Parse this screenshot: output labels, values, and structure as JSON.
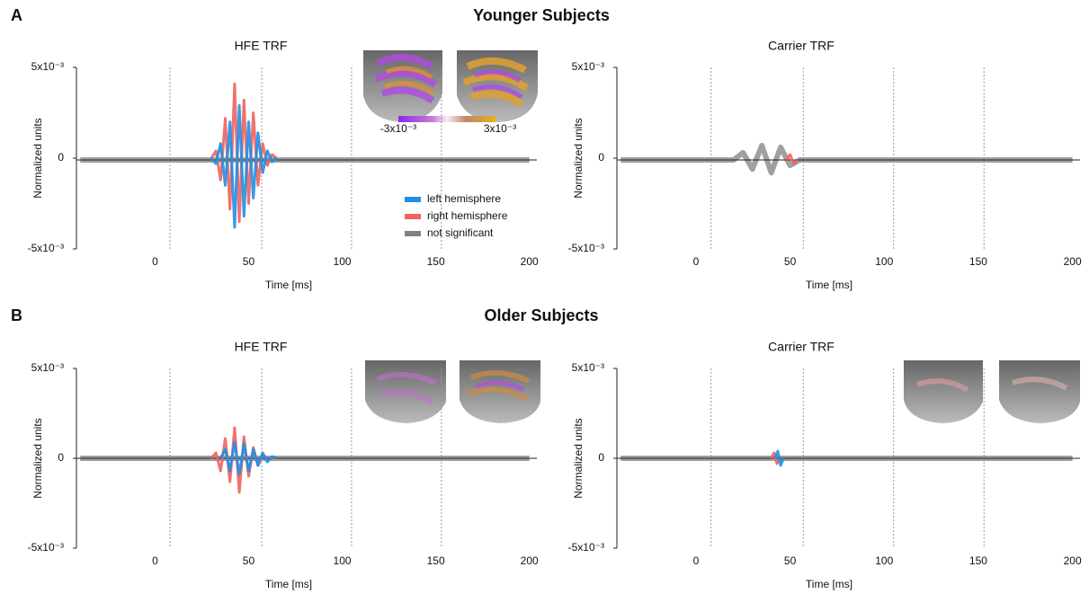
{
  "sections": [
    {
      "letter": "A",
      "title": "Younger Subjects"
    },
    {
      "letter": "B",
      "title": "Older Subjects"
    }
  ],
  "chart_data": [
    {
      "type": "line",
      "title": "HFE TRF",
      "y_label": "Normalized units",
      "x_label": "Time [ms]",
      "xlim": [
        -42,
        204
      ],
      "xticks": [
        0,
        50,
        100,
        150,
        200
      ],
      "ylim": [
        -0.005,
        0.005
      ],
      "yticks": [
        {
          "value": -0.005,
          "label": "-5x10⁻³"
        },
        0,
        {
          "value": 0.005,
          "label": "5x10⁻³"
        }
      ],
      "vlines": [
        8,
        57,
        105,
        153
      ],
      "legend": true,
      "colorbar_labels": [
        "-3x10⁻³",
        "3x10⁻³"
      ],
      "series": [
        {
          "name": "not significant",
          "color": "#808080",
          "x": [
            -40,
            200
          ],
          "values": [
            -0.0001,
            -0.0001
          ]
        },
        {
          "name": "right hemisphere",
          "color": "#f0625f",
          "x": [
            30,
            32.5,
            35,
            37.5,
            40,
            42.5,
            45,
            47.5,
            50,
            52.5,
            55,
            57.5,
            60,
            62.5,
            65
          ],
          "values": [
            0,
            0.0004,
            -0.0012,
            0.0022,
            -0.0028,
            0.0041,
            -0.0035,
            0.0032,
            -0.0025,
            0.0025,
            -0.0015,
            0.0008,
            -0.0004,
            0.0002,
            0
          ]
        },
        {
          "name": "left hemisphere",
          "color": "#1f8fe6",
          "x": [
            30,
            32.5,
            35,
            37.5,
            40,
            42.5,
            45,
            47.5,
            50,
            52.5,
            55,
            57.5,
            60,
            62.5,
            65
          ],
          "values": [
            0,
            -0.0003,
            0.0008,
            -0.0015,
            0.002,
            -0.0038,
            0.0029,
            -0.0032,
            0.002,
            -0.0022,
            0.0014,
            -0.0008,
            0.0004,
            -0.0002,
            0
          ]
        }
      ]
    },
    {
      "type": "line",
      "title": "Carrier TRF",
      "y_label": "Normalized units",
      "x_label": "Time [ms]",
      "xlim": [
        -42,
        204
      ],
      "xticks": [
        0,
        50,
        100,
        150,
        200
      ],
      "ylim": [
        -0.005,
        0.005
      ],
      "yticks": [
        {
          "value": -0.005,
          "label": "-5x10⁻³"
        },
        0,
        {
          "value": 0.005,
          "label": "5x10⁻³"
        }
      ],
      "vlines": [
        8,
        57,
        105,
        153
      ],
      "legend": false,
      "series": [
        {
          "name": "not significant",
          "color": "#808080",
          "x": [
            -40,
            20,
            25,
            30,
            35,
            40,
            45,
            50,
            55,
            200
          ],
          "values": [
            -0.0001,
            -0.0001,
            0.0003,
            -0.0006,
            0.0007,
            -0.0008,
            0.0006,
            -0.0004,
            -0.0001,
            -0.0001
          ]
        },
        {
          "name": "right hemisphere",
          "color": "#f0625f",
          "x": [
            48,
            50,
            52,
            54
          ],
          "values": [
            -0.0001,
            0.0002,
            -0.0003,
            -0.0001
          ]
        }
      ]
    },
    {
      "type": "line",
      "title": "HFE TRF",
      "y_label": "Normalized units",
      "x_label": "Time [ms]",
      "xlim": [
        -42,
        204
      ],
      "xticks": [
        0,
        50,
        100,
        150,
        200
      ],
      "ylim": [
        -0.005,
        0.005
      ],
      "yticks": [
        {
          "value": -0.005,
          "label": "-5x10⁻³"
        },
        0,
        {
          "value": 0.005,
          "label": "5x10⁻³"
        }
      ],
      "vlines": [
        8,
        57,
        105,
        153
      ],
      "legend": false,
      "series": [
        {
          "name": "not significant",
          "color": "#808080",
          "x": [
            -40,
            200
          ],
          "values": [
            0,
            0
          ]
        },
        {
          "name": "right hemisphere",
          "color": "#f0625f",
          "x": [
            30,
            32.5,
            35,
            37.5,
            40,
            42.5,
            45,
            47.5,
            50,
            52.5,
            55,
            57.5,
            60
          ],
          "values": [
            0,
            0.0003,
            -0.0007,
            0.0011,
            -0.0013,
            0.0017,
            -0.0019,
            0.0012,
            -0.001,
            0.0006,
            -0.0004,
            0.0002,
            0
          ]
        },
        {
          "name": "left hemisphere",
          "color": "#1f8fe6",
          "x": [
            35,
            37.5,
            40,
            42.5,
            45,
            47.5,
            50,
            52.5,
            55,
            57.5,
            60,
            62.5,
            65
          ],
          "values": [
            0,
            0.0005,
            -0.0007,
            0.0009,
            -0.0009,
            0.0008,
            -0.0007,
            0.0005,
            -0.0004,
            0.0003,
            -0.0002,
            0.0001,
            0
          ]
        }
      ]
    },
    {
      "type": "line",
      "title": "Carrier TRF",
      "y_label": "Normalized units",
      "x_label": "Time [ms]",
      "xlim": [
        -42,
        204
      ],
      "xticks": [
        0,
        50,
        100,
        150,
        200
      ],
      "ylim": [
        -0.005,
        0.005
      ],
      "yticks": [
        {
          "value": -0.005,
          "label": "-5x10⁻³"
        },
        0,
        {
          "value": 0.005,
          "label": "5x10⁻³"
        }
      ],
      "vlines": [
        8,
        57,
        105,
        153
      ],
      "legend": false,
      "series": [
        {
          "name": "not significant",
          "color": "#808080",
          "x": [
            -40,
            200
          ],
          "values": [
            0,
            0
          ]
        },
        {
          "name": "right hemisphere",
          "color": "#f0625f",
          "x": [
            40,
            41.5,
            43,
            44.5
          ],
          "values": [
            0,
            0.0003,
            -0.0003,
            0
          ]
        },
        {
          "name": "left hemisphere",
          "color": "#1f8fe6",
          "x": [
            42,
            43.5,
            45,
            46.5
          ],
          "values": [
            0,
            0.0004,
            -0.0004,
            0
          ]
        }
      ]
    }
  ]
}
